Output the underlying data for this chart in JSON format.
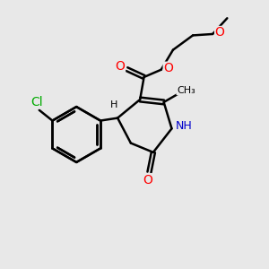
{
  "bg_color": "#e8e8e8",
  "bond_color": "#000000",
  "bond_width": 1.8,
  "atom_colors": {
    "O": "#ff0000",
    "N": "#0000cc",
    "Cl": "#00aa00",
    "H": "#000000",
    "C": "#000000"
  },
  "font_size": 9,
  "fig_width": 3.0,
  "fig_height": 3.0,
  "dpi": 100
}
